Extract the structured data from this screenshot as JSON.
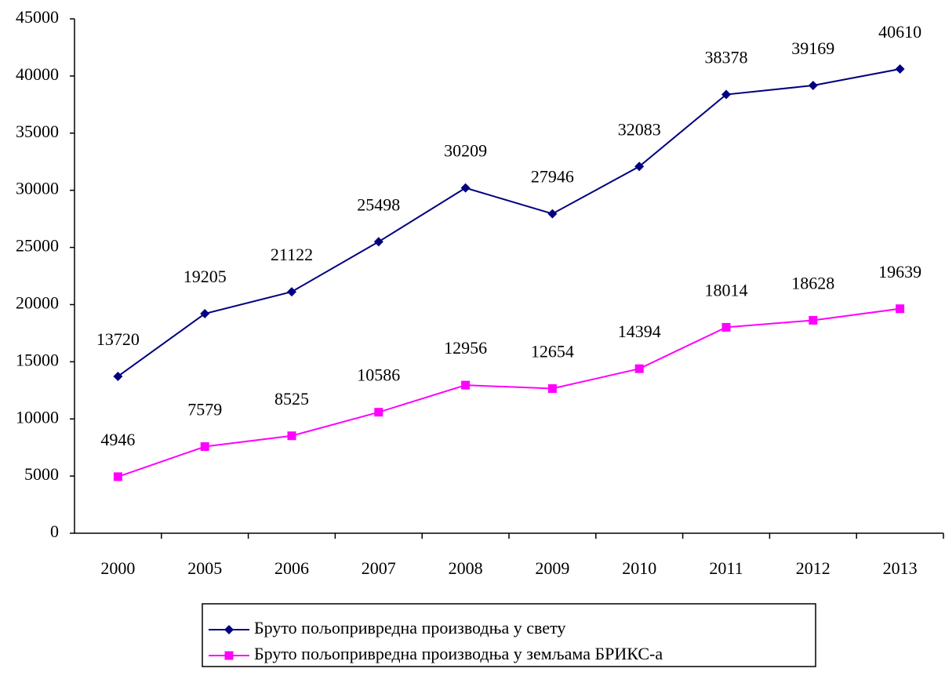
{
  "chart_data": {
    "type": "line",
    "categories": [
      "2000",
      "2005",
      "2006",
      "2007",
      "2008",
      "2009",
      "2010",
      "2011",
      "2012",
      "2013"
    ],
    "series": [
      {
        "name": "Бруто пољопривредна производња у свету",
        "color": "#000080",
        "marker": "diamond",
        "values": [
          13720,
          19205,
          21122,
          25498,
          30209,
          27946,
          32083,
          38378,
          39169,
          40610
        ]
      },
      {
        "name": "Бруто пољопривредна производња у земљама БРИКС-а",
        "color": "#ff00ff",
        "marker": "square",
        "values": [
          4946,
          7579,
          8525,
          10586,
          12956,
          12654,
          14394,
          18014,
          18628,
          19639
        ]
      }
    ],
    "ylim": [
      0,
      45000
    ],
    "yticks": [
      0,
      5000,
      10000,
      15000,
      20000,
      25000,
      30000,
      35000,
      40000,
      45000
    ],
    "grid": false,
    "legend": "bottom"
  }
}
